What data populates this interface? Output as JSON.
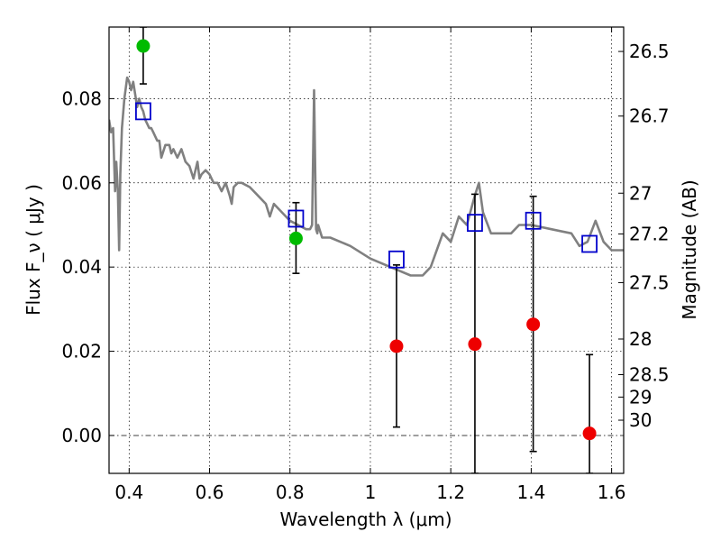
{
  "chart_data": {
    "type": "scatter",
    "xlabel": "Wavelength  λ (μm)",
    "ylabel_left": "Flux  F_ν  ( μJy )",
    "ylabel_right": "Magnitude (AB)",
    "xlim": [
      0.35,
      1.63
    ],
    "ylim": [
      -0.009,
      0.097
    ],
    "grid": true,
    "x_ticks": [
      {
        "value": 0.4,
        "label": "0.4"
      },
      {
        "value": 0.6,
        "label": "0.6"
      },
      {
        "value": 0.8,
        "label": "0.8"
      },
      {
        "value": 1.0,
        "label": "1"
      },
      {
        "value": 1.2,
        "label": "1.2"
      },
      {
        "value": 1.4,
        "label": "1.4"
      },
      {
        "value": 1.6,
        "label": "1.6"
      }
    ],
    "y_ticks": [
      {
        "value": 0.0,
        "label": "0.00"
      },
      {
        "value": 0.02,
        "label": "0.02"
      },
      {
        "value": 0.04,
        "label": "0.04"
      },
      {
        "value": 0.06,
        "label": "0.06"
      },
      {
        "value": 0.08,
        "label": "0.08"
      }
    ],
    "right_ticks": [
      {
        "value": 26.5,
        "label": "26.5"
      },
      {
        "value": 26.7,
        "label": "26.7"
      },
      {
        "value": 27.0,
        "label": "27"
      },
      {
        "value": 27.2,
        "label": "27.2"
      },
      {
        "value": 27.5,
        "label": "27.5"
      },
      {
        "value": 28.0,
        "label": "28"
      },
      {
        "value": 28.5,
        "label": "28.5"
      },
      {
        "value": 29.0,
        "label": "29"
      },
      {
        "value": 30.0,
        "label": "30"
      }
    ],
    "model_spectrum": {
      "color": "#808080",
      "x": [
        0.35,
        0.355,
        0.36,
        0.365,
        0.368,
        0.372,
        0.375,
        0.378,
        0.382,
        0.388,
        0.395,
        0.4,
        0.405,
        0.41,
        0.415,
        0.42,
        0.425,
        0.43,
        0.435,
        0.44,
        0.445,
        0.45,
        0.455,
        0.46,
        0.465,
        0.47,
        0.475,
        0.48,
        0.49,
        0.5,
        0.505,
        0.51,
        0.52,
        0.53,
        0.54,
        0.55,
        0.56,
        0.57,
        0.575,
        0.58,
        0.59,
        0.6,
        0.61,
        0.62,
        0.63,
        0.64,
        0.65,
        0.655,
        0.66,
        0.67,
        0.68,
        0.7,
        0.72,
        0.74,
        0.75,
        0.76,
        0.78,
        0.8,
        0.82,
        0.84,
        0.85,
        0.855,
        0.86,
        0.865,
        0.868,
        0.87,
        0.88,
        0.9,
        0.95,
        1.0,
        1.05,
        1.1,
        1.13,
        1.15,
        1.18,
        1.2,
        1.22,
        1.24,
        1.26,
        1.27,
        1.28,
        1.3,
        1.35,
        1.37,
        1.4,
        1.45,
        1.5,
        1.52,
        1.54,
        1.56,
        1.58,
        1.6,
        1.63
      ],
      "y": [
        0.075,
        0.072,
        0.073,
        0.058,
        0.065,
        0.058,
        0.044,
        0.062,
        0.073,
        0.08,
        0.085,
        0.084,
        0.082,
        0.084,
        0.081,
        0.078,
        0.08,
        0.078,
        0.077,
        0.075,
        0.074,
        0.073,
        0.073,
        0.072,
        0.071,
        0.07,
        0.07,
        0.066,
        0.069,
        0.069,
        0.067,
        0.068,
        0.066,
        0.068,
        0.065,
        0.064,
        0.061,
        0.065,
        0.061,
        0.062,
        0.063,
        0.062,
        0.06,
        0.06,
        0.058,
        0.06,
        0.057,
        0.055,
        0.059,
        0.06,
        0.06,
        0.059,
        0.057,
        0.055,
        0.052,
        0.055,
        0.053,
        0.051,
        0.05,
        0.049,
        0.049,
        0.05,
        0.082,
        0.049,
        0.048,
        0.05,
        0.047,
        0.047,
        0.045,
        0.042,
        0.04,
        0.038,
        0.038,
        0.04,
        0.048,
        0.046,
        0.052,
        0.05,
        0.057,
        0.06,
        0.053,
        0.048,
        0.048,
        0.05,
        0.05,
        0.049,
        0.048,
        0.045,
        0.046,
        0.051,
        0.046,
        0.044,
        0.044
      ]
    },
    "series": [
      {
        "marker": "square",
        "color": "#0000cc",
        "x": [
          0.435,
          0.815,
          1.065,
          1.26,
          1.405,
          1.545
        ],
        "y": [
          0.077,
          0.0515,
          0.0418,
          0.0505,
          0.051,
          0.0455
        ]
      },
      {
        "marker": "circle",
        "color": "#00bb00",
        "x": [
          0.435,
          0.815
        ],
        "y": [
          0.0925,
          0.0468
        ],
        "yerr_low": [
          0.0835,
          0.0385
        ],
        "yerr_high": [
          0.097,
          0.0553
        ]
      },
      {
        "marker": "circle",
        "color": "#ee0000",
        "x": [
          1.065,
          1.26,
          1.405,
          1.545
        ],
        "y": [
          0.0212,
          0.0217,
          0.0264,
          0.0005
        ],
        "yerr_low": [
          0.002,
          -0.009,
          -0.0038,
          -0.009
        ],
        "yerr_high": [
          0.0405,
          0.0573,
          0.0568,
          0.0192
        ]
      }
    ]
  }
}
